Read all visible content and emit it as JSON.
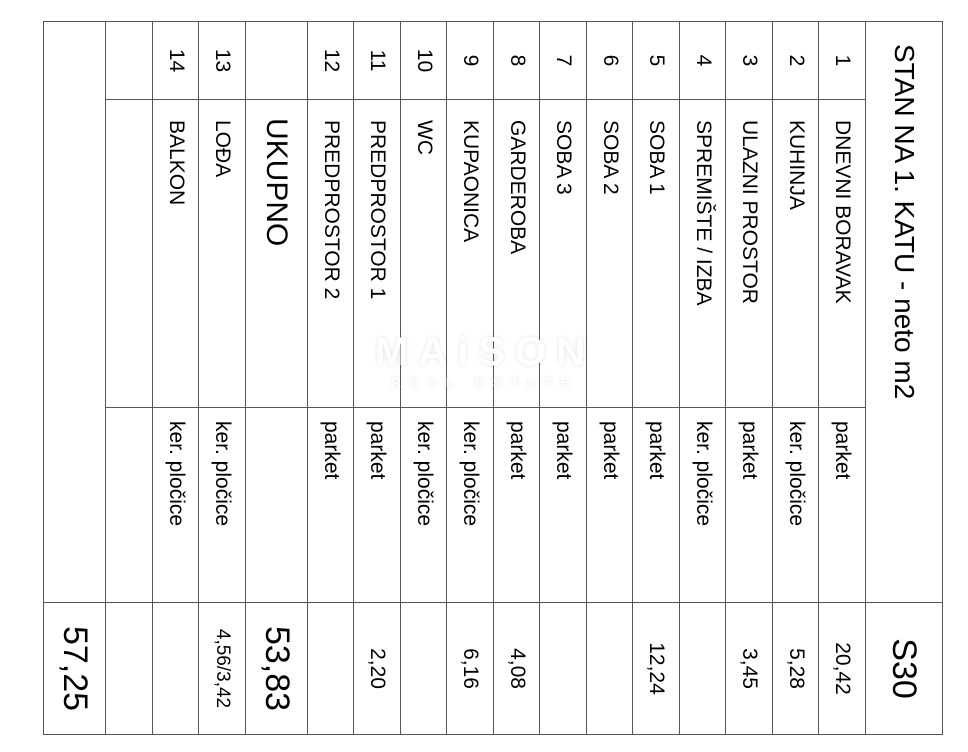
{
  "title": "STAN NA 1. KATU - neto m2",
  "code": "S30",
  "rows": [
    {
      "no": "1",
      "name": "DNEVNI BORAVAK",
      "material": "parket",
      "area": "20,42"
    },
    {
      "no": "2",
      "name": "KUHINJA",
      "material": "ker. pločice",
      "area": "5,28"
    },
    {
      "no": "3",
      "name": "ULAZNI PROSTOR",
      "material": "parket",
      "area": "3,45"
    },
    {
      "no": "4",
      "name": "SPREMIŠTE / IZBA",
      "material": "ker. pločice",
      "area": ""
    },
    {
      "no": "5",
      "name": "SOBA 1",
      "material": "parket",
      "area": "12,24"
    },
    {
      "no": "6",
      "name": "SOBA 2",
      "material": "parket",
      "area": ""
    },
    {
      "no": "7",
      "name": "SOBA 3",
      "material": "parket",
      "area": ""
    },
    {
      "no": "8",
      "name": "GARDEROBA",
      "material": "parket",
      "area": "4,08"
    },
    {
      "no": "9",
      "name": "KUPAONICA",
      "material": "ker. pločice",
      "area": "6,16"
    },
    {
      "no": "10",
      "name": "WC",
      "material": "ker. pločice",
      "area": ""
    },
    {
      "no": "11",
      "name": "PREDPROSTOR 1",
      "material": "parket",
      "area": "2,20"
    },
    {
      "no": "12",
      "name": "PREDPROSTOR 2",
      "material": "parket",
      "area": ""
    }
  ],
  "subtotal": {
    "label": "UKUPNO",
    "area": "53,83"
  },
  "extra_rows": [
    {
      "no": "13",
      "name": "LOĐA",
      "material": "ker. pločice",
      "area": "4,56/3,42"
    },
    {
      "no": "14",
      "name": "BALKON",
      "material": "ker. pločice",
      "area": ""
    }
  ],
  "grand_total": "57,25",
  "watermark": {
    "brand": "MAiSON",
    "tagline": "REAL ESTATE"
  }
}
